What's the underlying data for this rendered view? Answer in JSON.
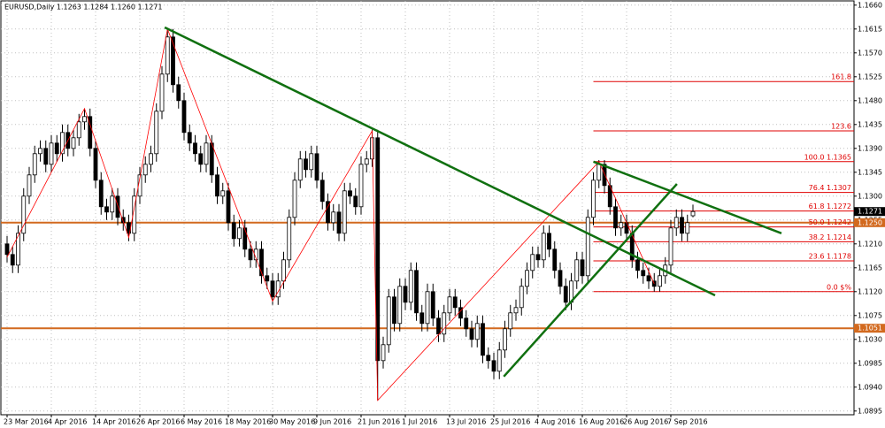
{
  "chart_data": {
    "type": "candlestick",
    "title": "EURUSD,Daily  1.1263 1.1284 1.1260 1.1271",
    "ylim": [
      1.0888,
      1.1668
    ],
    "yticks": [
      {
        "value": 1.166,
        "label": "1.1660"
      },
      1.1615,
      {
        "value": 1.157,
        "label": "1.1570"
      },
      1.1525,
      {
        "value": 1.148,
        "label": "1.1480"
      },
      1.1435,
      {
        "value": 1.139,
        "label": "1.1390"
      },
      1.1345,
      {
        "value": 1.13,
        "label": "1.1300"
      },
      1.1255,
      {
        "value": 1.121,
        "label": "1.1210"
      },
      1.1165,
      {
        "value": 1.112,
        "label": "1.1120"
      },
      1.1075,
      {
        "value": 1.103,
        "label": "1.1030"
      },
      1.0985,
      {
        "value": 1.094,
        "label": "1.0940"
      },
      1.0895
    ],
    "grid": true,
    "up_color": "#ffffff",
    "down_color": "#000000",
    "categories": [
      "23 Mar 2016",
      null,
      null,
      null,
      null,
      null,
      null,
      null,
      "4 Apr 2016",
      null,
      null,
      null,
      null,
      null,
      null,
      null,
      "14 Apr 2016",
      null,
      null,
      null,
      null,
      null,
      null,
      null,
      "26 Apr 2016",
      null,
      null,
      null,
      null,
      null,
      null,
      null,
      "6 May 2016",
      null,
      null,
      null,
      null,
      null,
      null,
      null,
      "18 May 2016",
      null,
      null,
      null,
      null,
      null,
      null,
      null,
      "30 May 2016",
      null,
      null,
      null,
      null,
      null,
      null,
      null,
      "9 Jun 2016",
      null,
      null,
      null,
      null,
      null,
      null,
      null,
      "21 Jun 2016",
      null,
      null,
      null,
      null,
      null,
      null,
      null,
      "1 Jul 2016",
      null,
      null,
      null,
      null,
      null,
      null,
      null,
      "13 Jul 2016",
      null,
      null,
      null,
      null,
      null,
      null,
      null,
      "25 Jul 2016",
      null,
      null,
      null,
      null,
      null,
      null,
      null,
      "4 Aug 2016",
      null,
      null,
      null,
      null,
      null,
      null,
      null,
      "16 Aug 2016",
      null,
      null,
      null,
      null,
      null,
      null,
      null,
      "26 Aug 2016",
      null,
      null,
      null,
      null,
      null,
      null,
      null,
      "7 Sep 2016",
      null,
      null,
      null,
      null
    ],
    "ohlc": [
      [
        1.121,
        1.1225,
        1.1175,
        1.119
      ],
      [
        1.119,
        1.1205,
        1.1155,
        1.117
      ],
      [
        1.117,
        1.1245,
        1.1155,
        1.123
      ],
      [
        1.123,
        1.1315,
        1.1215,
        1.13
      ],
      [
        1.13,
        1.1355,
        1.1285,
        1.134
      ],
      [
        1.134,
        1.1395,
        1.1325,
        1.138
      ],
      [
        1.138,
        1.1405,
        1.1365,
        1.139
      ],
      [
        1.139,
        1.1405,
        1.1345,
        1.136
      ],
      [
        1.136,
        1.1415,
        1.1345,
        1.14
      ],
      [
        1.14,
        1.1415,
        1.1365,
        1.138
      ],
      [
        1.138,
        1.1435,
        1.1365,
        1.142
      ],
      [
        1.142,
        1.1435,
        1.1375,
        1.139
      ],
      [
        1.139,
        1.1425,
        1.1375,
        1.141
      ],
      [
        1.141,
        1.1455,
        1.1395,
        1.144
      ],
      [
        1.144,
        1.1465,
        1.1425,
        1.145
      ],
      [
        1.145,
        1.1465,
        1.1375,
        1.139
      ],
      [
        1.139,
        1.1405,
        1.1315,
        1.133
      ],
      [
        1.133,
        1.1345,
        1.1265,
        1.128
      ],
      [
        1.128,
        1.1295,
        1.1255,
        1.127
      ],
      [
        1.127,
        1.1315,
        1.1255,
        1.13
      ],
      [
        1.13,
        1.1315,
        1.1245,
        1.126
      ],
      [
        1.126,
        1.1275,
        1.1235,
        1.125
      ],
      [
        1.125,
        1.1265,
        1.1215,
        1.123
      ],
      [
        1.123,
        1.1315,
        1.1215,
        1.13
      ],
      [
        1.13,
        1.1355,
        1.1285,
        1.134
      ],
      [
        1.134,
        1.1375,
        1.1325,
        1.136
      ],
      [
        1.136,
        1.1395,
        1.1345,
        1.138
      ],
      [
        1.138,
        1.1475,
        1.1365,
        1.146
      ],
      [
        1.146,
        1.1545,
        1.1445,
        1.153
      ],
      [
        1.153,
        1.1615,
        1.1515,
        1.16
      ],
      [
        1.16,
        1.1615,
        1.1495,
        1.151
      ],
      [
        1.151,
        1.1525,
        1.1465,
        1.148
      ],
      [
        1.148,
        1.1495,
        1.1405,
        1.142
      ],
      [
        1.142,
        1.1435,
        1.1385,
        1.14
      ],
      [
        1.14,
        1.1415,
        1.1365,
        1.138
      ],
      [
        1.138,
        1.1395,
        1.1345,
        1.136
      ],
      [
        1.136,
        1.1415,
        1.1345,
        1.14
      ],
      [
        1.14,
        1.1415,
        1.1325,
        1.134
      ],
      [
        1.134,
        1.1355,
        1.1285,
        1.13
      ],
      [
        1.13,
        1.1325,
        1.1285,
        1.131
      ],
      [
        1.131,
        1.1325,
        1.1235,
        1.125
      ],
      [
        1.125,
        1.1265,
        1.1205,
        1.122
      ],
      [
        1.122,
        1.1255,
        1.1205,
        1.124
      ],
      [
        1.124,
        1.1255,
        1.1185,
        1.12
      ],
      [
        1.12,
        1.1215,
        1.1165,
        1.118
      ],
      [
        1.118,
        1.1215,
        1.1165,
        1.12
      ],
      [
        1.12,
        1.1215,
        1.1135,
        1.115
      ],
      [
        1.115,
        1.1165,
        1.1125,
        1.114
      ],
      [
        1.114,
        1.1155,
        1.1095,
        1.111
      ],
      [
        1.111,
        1.1155,
        1.1095,
        1.114
      ],
      [
        1.114,
        1.1195,
        1.1125,
        1.118
      ],
      [
        1.118,
        1.1275,
        1.1165,
        1.126
      ],
      [
        1.126,
        1.1345,
        1.1245,
        1.133
      ],
      [
        1.133,
        1.1385,
        1.1315,
        1.137
      ],
      [
        1.137,
        1.1385,
        1.1335,
        1.135
      ],
      [
        1.135,
        1.1395,
        1.1335,
        1.138
      ],
      [
        1.138,
        1.1395,
        1.1315,
        1.133
      ],
      [
        1.133,
        1.1345,
        1.1275,
        1.129
      ],
      [
        1.129,
        1.1305,
        1.1235,
        1.125
      ],
      [
        1.125,
        1.1285,
        1.1235,
        1.127
      ],
      [
        1.127,
        1.1285,
        1.1215,
        1.123
      ],
      [
        1.123,
        1.1325,
        1.1215,
        1.131
      ],
      [
        1.131,
        1.1325,
        1.1285,
        1.13
      ],
      [
        1.13,
        1.1315,
        1.1265,
        1.128
      ],
      [
        1.128,
        1.1375,
        1.1265,
        1.136
      ],
      [
        1.136,
        1.1385,
        1.1345,
        1.137
      ],
      [
        1.137,
        1.1425,
        1.1355,
        1.141
      ],
      [
        1.141,
        1.1425,
        1.0915,
        1.099
      ],
      [
        1.099,
        1.1035,
        1.0975,
        1.102
      ],
      [
        1.102,
        1.1125,
        1.1005,
        1.111
      ],
      [
        1.111,
        1.1125,
        1.1045,
        1.106
      ],
      [
        1.106,
        1.1145,
        1.1045,
        1.113
      ],
      [
        1.113,
        1.1145,
        1.1085,
        1.11
      ],
      [
        1.11,
        1.1175,
        1.1085,
        1.116
      ],
      [
        1.116,
        1.1175,
        1.1065,
        1.108
      ],
      [
        1.108,
        1.1095,
        1.1045,
        1.106
      ],
      [
        1.106,
        1.1135,
        1.1045,
        1.112
      ],
      [
        1.112,
        1.1135,
        1.1055,
        1.107
      ],
      [
        1.107,
        1.1085,
        1.1025,
        1.104
      ],
      [
        1.104,
        1.1095,
        1.1025,
        1.108
      ],
      [
        1.108,
        1.1125,
        1.1065,
        1.111
      ],
      [
        1.111,
        1.1125,
        1.1075,
        1.109
      ],
      [
        1.109,
        1.1105,
        1.1055,
        1.107
      ],
      [
        1.107,
        1.1085,
        1.1035,
        1.105
      ],
      [
        1.105,
        1.1065,
        1.1015,
        1.103
      ],
      [
        1.103,
        1.1075,
        1.1015,
        1.106
      ],
      [
        1.106,
        1.1075,
        1.0985,
        1.1
      ],
      [
        1.1,
        1.1015,
        1.0975,
        1.099
      ],
      [
        1.099,
        1.1005,
        1.0955,
        1.097
      ],
      [
        1.097,
        1.1025,
        1.0955,
        1.101
      ],
      [
        1.101,
        1.1065,
        1.0995,
        1.105
      ],
      [
        1.105,
        1.1095,
        1.1035,
        1.108
      ],
      [
        1.108,
        1.1105,
        1.1065,
        1.109
      ],
      [
        1.109,
        1.1145,
        1.1075,
        1.113
      ],
      [
        1.113,
        1.1175,
        1.1115,
        1.116
      ],
      [
        1.116,
        1.1205,
        1.1145,
        1.119
      ],
      [
        1.119,
        1.1205,
        1.1165,
        1.118
      ],
      [
        1.118,
        1.1245,
        1.1165,
        1.123
      ],
      [
        1.123,
        1.1245,
        1.1185,
        1.12
      ],
      [
        1.12,
        1.1215,
        1.1145,
        1.116
      ],
      [
        1.116,
        1.1175,
        1.1115,
        1.113
      ],
      [
        1.113,
        1.1145,
        1.1085,
        1.11
      ],
      [
        1.11,
        1.1155,
        1.1085,
        1.114
      ],
      [
        1.114,
        1.1195,
        1.1125,
        1.118
      ],
      [
        1.118,
        1.1195,
        1.1135,
        1.115
      ],
      [
        1.115,
        1.1275,
        1.1135,
        1.126
      ],
      [
        1.126,
        1.1345,
        1.1245,
        1.133
      ],
      [
        1.133,
        1.1368,
        1.1315,
        1.136
      ],
      [
        1.136,
        1.1368,
        1.1305,
        1.132
      ],
      [
        1.132,
        1.1335,
        1.1265,
        1.128
      ],
      [
        1.128,
        1.1295,
        1.1225,
        1.124
      ],
      [
        1.124,
        1.1265,
        1.1225,
        1.125
      ],
      [
        1.125,
        1.1265,
        1.1215,
        1.123
      ],
      [
        1.123,
        1.1245,
        1.1165,
        1.118
      ],
      [
        1.118,
        1.1195,
        1.1145,
        1.116
      ],
      [
        1.116,
        1.1175,
        1.1135,
        1.115
      ],
      [
        1.115,
        1.1165,
        1.1125,
        1.114
      ],
      [
        1.114,
        1.1155,
        1.112,
        1.113
      ],
      [
        1.113,
        1.1165,
        1.112,
        1.115
      ],
      [
        1.115,
        1.1185,
        1.1135,
        1.117
      ],
      [
        1.117,
        1.1255,
        1.1155,
        1.124
      ],
      [
        1.124,
        1.1275,
        1.1225,
        1.126
      ],
      [
        1.126,
        1.1275,
        1.1215,
        1.123
      ],
      [
        1.123,
        1.1265,
        1.1215,
        1.125
      ],
      [
        1.1263,
        1.1284,
        1.126,
        1.1271
      ]
    ],
    "zigzag": {
      "color": "#ff0000",
      "x": [
        0,
        14,
        22,
        29,
        48,
        66,
        67,
        107,
        117
      ],
      "y": [
        1.1185,
        1.1465,
        1.1222,
        1.1615,
        1.1102,
        1.1423,
        1.0915,
        1.1365,
        1.1135
      ]
    },
    "trendlines": [
      {
        "color": "#107010",
        "x": [
          28.5,
          128
        ],
        "y": [
          1.1618,
          1.1113
        ]
      },
      {
        "color": "#107010",
        "x": [
          106,
          140
        ],
        "y": [
          1.1365,
          1.123
        ]
      },
      {
        "color": "#107010",
        "x": [
          89.8,
          121.1
        ],
        "y": [
          1.096,
          1.1323
        ]
      }
    ],
    "fibo": {
      "color": "#e00000",
      "x_start": 106,
      "levels": [
        {
          "value": 1.1516,
          "label": "161.8"
        },
        {
          "value": 1.1423,
          "label": "123.6"
        },
        {
          "value": 1.1365,
          "label": "100.0 1.1365"
        },
        {
          "value": 1.1307,
          "label": "76.4 1.1307"
        },
        {
          "value": 1.1272,
          "label": "61.8 1.1272"
        },
        {
          "value": 1.1242,
          "label": "50.0 1.1242"
        },
        {
          "value": 1.1214,
          "label": "38.2 1.1214"
        },
        {
          "value": 1.1178,
          "label": "23.6 1.1178"
        },
        {
          "value": 1.112,
          "label": "0.0 $%"
        }
      ]
    },
    "hlines": [
      {
        "value": 1.125,
        "label": "1.1250",
        "color": "#d2691e"
      },
      {
        "value": 1.1051,
        "label": "1.1051",
        "color": "#d2691e"
      }
    ],
    "price": {
      "value": 1.1271,
      "label": "1.1271",
      "color": "#000000"
    }
  }
}
